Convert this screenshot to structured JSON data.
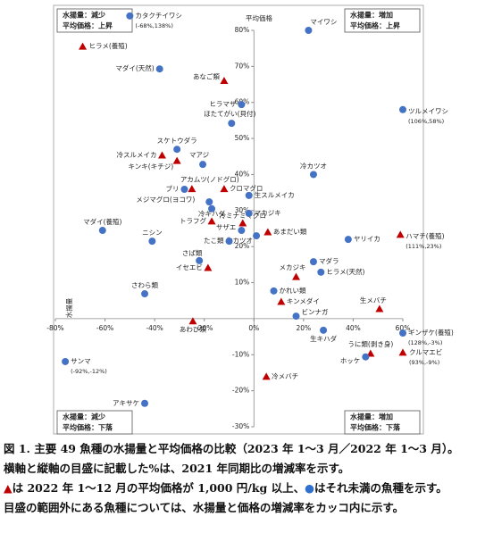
{
  "chart_data": {
    "type": "scatter",
    "y_axis_label": "平均価格",
    "x_axis_label": "水揚量",
    "xlim": [
      -80,
      60
    ],
    "ylim": [
      -30,
      80
    ],
    "xticks": [
      {
        "value": -80,
        "label": "-80%"
      },
      {
        "value": -60,
        "label": "-60%"
      },
      {
        "value": -40,
        "label": "-40%"
      },
      {
        "value": -20,
        "label": "-20%"
      },
      {
        "value": 0,
        "label": "0%"
      },
      {
        "value": 20,
        "label": "20%"
      },
      {
        "value": 40,
        "label": "40%"
      },
      {
        "value": 60,
        "label": "60%"
      }
    ],
    "yticks": [
      {
        "value": 80,
        "label": "80%"
      },
      {
        "value": 70,
        "label": "70%"
      },
      {
        "value": 60,
        "label": "60%"
      },
      {
        "value": 50,
        "label": "50%"
      },
      {
        "value": 40,
        "label": "40%"
      },
      {
        "value": 30,
        "label": "30%"
      },
      {
        "value": 20,
        "label": "20%"
      },
      {
        "value": 10,
        "label": "10%"
      },
      {
        "value": -10,
        "label": "-10%"
      },
      {
        "value": -20,
        "label": "-20%"
      },
      {
        "value": -30,
        "label": "-30%"
      }
    ],
    "quadrants": [
      [
        "水揚量：減少",
        "平均価格：上昇"
      ],
      [
        "水揚量：増加",
        "平均価格：上昇"
      ],
      [
        "水揚量：減少",
        "平均価格：下落"
      ],
      [
        "水揚量：増加",
        "平均価格：下落"
      ]
    ],
    "series": [
      {
        "marker": "triangle",
        "color": "#c00000",
        "points": [
          {
            "label": "ヒラメ(養殖)",
            "x": -69,
            "y": 75.5
          },
          {
            "label": "あなご類",
            "x": -12,
            "y": 66
          },
          {
            "label": "冷スルメイカ",
            "x": -37,
            "y": 45.3
          },
          {
            "label": "キンキ(キチジ)",
            "x": -31,
            "y": 43.8
          },
          {
            "label": "アカムツ(ノドグロ)",
            "x": -25,
            "y": 36
          },
          {
            "label": "クロマグロ",
            "x": -12,
            "y": 36
          },
          {
            "label": "トラフグ",
            "x": -17,
            "y": 27
          },
          {
            "label": "冷ミナミマグロ",
            "x": -4.5,
            "y": 26.5
          },
          {
            "label": "あまだい類",
            "x": 5.6,
            "y": 24
          },
          {
            "label": "ハマチ(養殖)",
            "x": 59,
            "y": 23.3,
            "note": "(111%,23%)"
          },
          {
            "label": "イセエビ",
            "x": -18.5,
            "y": 14.1
          },
          {
            "label": "メカジキ",
            "x": 17,
            "y": 11.6
          },
          {
            "label": "キンメダイ",
            "x": 11,
            "y": 4.7
          },
          {
            "label": "生メバチ",
            "x": 50.6,
            "y": 2.7
          },
          {
            "label": "あわび類",
            "x": -24.6,
            "y": -0.7
          },
          {
            "label": "うに類(剥き身)",
            "x": 47,
            "y": -9.7
          },
          {
            "label": "クルマエビ",
            "x": 60,
            "y": -9.4,
            "note": "(93%,-9%)"
          },
          {
            "label": "冷メバチ",
            "x": 5,
            "y": -16.1
          }
        ]
      },
      {
        "marker": "circle",
        "color": "#4472c4",
        "points": [
          {
            "label": "カタクチイワシ",
            "x": -50,
            "y": 84,
            "note": "(-68%,138%)"
          },
          {
            "label": "マイワシ",
            "x": 22,
            "y": 80
          },
          {
            "label": "マダイ(天然)",
            "x": -38,
            "y": 69.3
          },
          {
            "label": "ヒラマサ",
            "x": -5,
            "y": 59.4
          },
          {
            "label": "ほたてがい(貝付)",
            "x": -9,
            "y": 54.2
          },
          {
            "label": "ツルメイワシ",
            "x": 60,
            "y": 58,
            "note": "(106%,58%)"
          },
          {
            "label": "スケトウダラ",
            "x": -31,
            "y": 47
          },
          {
            "label": "マアジ",
            "x": -20.6,
            "y": 42.8
          },
          {
            "label": "冷カツオ",
            "x": 24,
            "y": 40
          },
          {
            "label": "ブリ",
            "x": -28,
            "y": 35.9
          },
          {
            "label": "生スルメイカ",
            "x": -2,
            "y": 34.2
          },
          {
            "label": "メジマグロ(ヨコワ)",
            "x": -18,
            "y": 32.4
          },
          {
            "label": "冷キハダ",
            "x": -17,
            "y": 30.5
          },
          {
            "label": "マカジキ",
            "x": -2,
            "y": 29.2
          },
          {
            "label": "マダイ(養殖)",
            "x": -61,
            "y": 24.5
          },
          {
            "label": "サザエ",
            "x": -5,
            "y": 24.5
          },
          {
            "label": "生カツオ",
            "x": 1,
            "y": 23
          },
          {
            "label": "たこ類",
            "x": -10,
            "y": 21.5
          },
          {
            "label": "ニシン",
            "x": -41,
            "y": 21.5
          },
          {
            "label": "ヤリイカ",
            "x": 38,
            "y": 22
          },
          {
            "label": "さば類",
            "x": -22,
            "y": 16.1
          },
          {
            "label": "マダラ",
            "x": 24,
            "y": 15.8
          },
          {
            "label": "ヒラメ(天然)",
            "x": 27,
            "y": 12.9
          },
          {
            "label": "かれい類",
            "x": 8,
            "y": 7.7
          },
          {
            "label": "さわら類",
            "x": -44,
            "y": 6.9
          },
          {
            "label": "ビンナガ",
            "x": 17,
            "y": 0.7
          },
          {
            "label": "生キハダ",
            "x": 28,
            "y": -3.2
          },
          {
            "label": "ギンザケ(養殖)",
            "x": 60,
            "y": -4,
            "note": "(128%,-3%)"
          },
          {
            "label": "ホッケ",
            "x": 45,
            "y": -10.6
          },
          {
            "label": "サンマ",
            "x": -76,
            "y": -11.9,
            "note": "(-92%,-12%)"
          },
          {
            "label": "アキサケ",
            "x": -44,
            "y": -23.5
          }
        ]
      }
    ]
  },
  "caption": {
    "line1": "図 1.  主要 49 魚種の水揚量と平均価格の比較（2023 年 1～3 月／2022 年 1～3 月）。",
    "line2": " 横軸と縦軸の目盛に記載した%は、2021 年同期比の増減率を示す。",
    "line3a": "は 2022 年 1～12 月の平均価格が 1,000 円/kg 以上、",
    "line3b": "はそれ未満の魚種を示す。",
    "line4": "目盛の範囲外にある魚種については、水揚量と価格の増減率をカッコ内に示す。"
  }
}
